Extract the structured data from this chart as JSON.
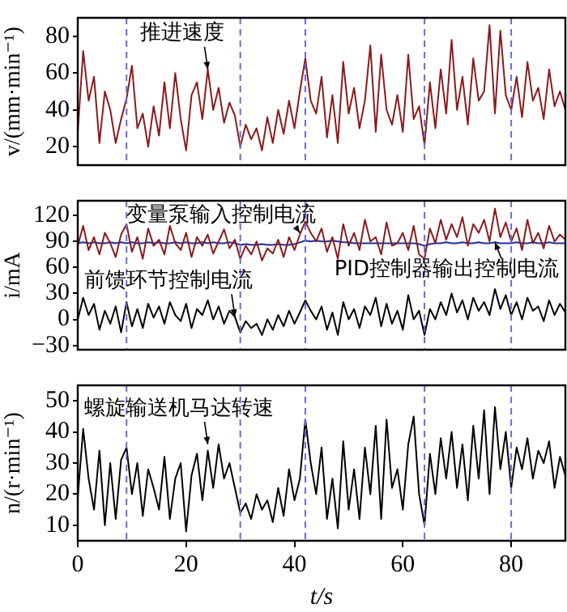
{
  "chart_data": [
    {
      "type": "line",
      "ylabel": "v/(mm·min⁻¹)",
      "tick_labels": "y",
      "x": [
        0,
        1,
        2,
        3,
        4,
        5,
        6,
        7,
        8,
        9,
        10,
        11,
        12,
        13,
        14,
        15,
        16,
        17,
        18,
        19,
        20,
        21,
        22,
        23,
        24,
        25,
        26,
        27,
        28,
        29,
        30,
        31,
        32,
        33,
        34,
        35,
        36,
        37,
        38,
        39,
        40,
        41,
        42,
        43,
        44,
        45,
        46,
        47,
        48,
        49,
        50,
        51,
        52,
        53,
        54,
        55,
        56,
        57,
        58,
        59,
        60,
        61,
        62,
        63,
        64,
        65,
        66,
        67,
        68,
        69,
        70,
        71,
        72,
        73,
        74,
        75,
        76,
        77,
        78,
        79,
        80,
        81,
        82,
        83,
        84,
        85,
        86,
        87,
        88,
        89,
        90
      ],
      "xlim": [
        0,
        90
      ],
      "xticks": [
        0,
        20,
        40,
        60,
        80
      ],
      "ylim": [
        10,
        90
      ],
      "yticks": [
        20,
        40,
        60,
        80
      ],
      "series": [
        {
          "color": "#8b1a1a",
          "values": [
            28,
            72,
            45,
            58,
            22,
            50,
            40,
            22,
            35,
            46,
            64,
            30,
            38,
            20,
            42,
            26,
            55,
            30,
            60,
            35,
            18,
            48,
            55,
            35,
            62,
            40,
            52,
            33,
            44,
            37,
            20,
            32,
            24,
            30,
            18,
            36,
            22,
            40,
            27,
            45,
            30,
            50,
            68,
            45,
            38,
            58,
            25,
            48,
            22,
            66,
            38,
            52,
            30,
            45,
            75,
            28,
            70,
            40,
            32,
            48,
            28,
            70,
            35,
            42,
            21,
            55,
            30,
            62,
            38,
            78,
            40,
            58,
            32,
            68,
            45,
            50,
            86,
            38,
            83,
            48,
            40,
            58,
            36,
            66,
            45,
            52,
            35,
            62,
            42,
            50,
            40
          ]
        }
      ],
      "ref_lines": [
        {
          "axis": "x",
          "value": 9,
          "color": "#6a6ad8",
          "line_style": "dashed"
        },
        {
          "axis": "x",
          "value": 30,
          "color": "#6a6ad8",
          "line_style": "dashed"
        },
        {
          "axis": "x",
          "value": 42,
          "color": "#6a6ad8",
          "line_style": "dashed"
        },
        {
          "axis": "x",
          "value": 64,
          "color": "#6a6ad8",
          "line_style": "dashed"
        },
        {
          "axis": "x",
          "value": 80,
          "color": "#6a6ad8",
          "line_style": "dashed"
        }
      ],
      "annotations": [
        {
          "text": "推进速度",
          "x": 24,
          "y": 62
        }
      ]
    },
    {
      "type": "line",
      "ylabel": "i/mA",
      "tick_labels": "y",
      "x": [
        0,
        1,
        2,
        3,
        4,
        5,
        6,
        7,
        8,
        9,
        10,
        11,
        12,
        13,
        14,
        15,
        16,
        17,
        18,
        19,
        20,
        21,
        22,
        23,
        24,
        25,
        26,
        27,
        28,
        29,
        30,
        31,
        32,
        33,
        34,
        35,
        36,
        37,
        38,
        39,
        40,
        41,
        42,
        43,
        44,
        45,
        46,
        47,
        48,
        49,
        50,
        51,
        52,
        53,
        54,
        55,
        56,
        57,
        58,
        59,
        60,
        61,
        62,
        63,
        64,
        65,
        66,
        67,
        68,
        69,
        70,
        71,
        72,
        73,
        74,
        75,
        76,
        77,
        78,
        79,
        80,
        81,
        82,
        83,
        84,
        85,
        86,
        87,
        88,
        89,
        90
      ],
      "xlim": [
        0,
        90
      ],
      "xticks": [
        0,
        20,
        40,
        60,
        80
      ],
      "ylim": [
        -35,
        137
      ],
      "yticks": [
        -30,
        0,
        30,
        60,
        90,
        120
      ],
      "series": [
        {
          "color": "#8b1a1a",
          "values": [
            85,
            108,
            80,
            95,
            75,
            100,
            88,
            72,
            98,
            110,
            78,
            95,
            70,
            105,
            85,
            92,
            75,
            108,
            88,
            80,
            100,
            72,
            95,
            85,
            98,
            76,
            90,
            104,
            82,
            92,
            70,
            85,
            75,
            90,
            68,
            82,
            76,
            92,
            72,
            95,
            80,
            98,
            113,
            100,
            90,
            105,
            78,
            95,
            70,
            110,
            85,
            100,
            80,
            115,
            90,
            95,
            75,
            112,
            85,
            88,
            100,
            80,
            108,
            75,
            70,
            105,
            88,
            115,
            92,
            110,
            95,
            118,
            85,
            110,
            100,
            115,
            90,
            128,
            95,
            112,
            90,
            105,
            80,
            115,
            88,
            100,
            82,
            108,
            90,
            98,
            92
          ]
        },
        {
          "color": "#1f2f9a",
          "values": [
            88,
            89,
            88,
            89,
            88,
            88,
            89,
            88,
            89,
            88,
            89,
            88,
            88,
            89,
            88,
            89,
            88,
            88,
            89,
            88,
            89,
            88,
            88,
            89,
            88,
            89,
            88,
            88,
            89,
            88,
            86,
            87,
            86,
            86,
            87,
            86,
            86,
            87,
            86,
            86,
            87,
            89,
            91,
            90,
            91,
            90,
            90,
            91,
            90,
            89,
            89,
            88,
            88,
            88,
            88,
            88,
            88,
            88,
            88,
            88,
            88,
            88,
            88,
            87,
            85,
            87,
            88,
            88,
            89,
            88,
            88,
            89,
            88,
            88,
            89,
            88,
            88,
            89,
            88,
            88,
            88,
            89,
            88,
            88,
            89,
            88,
            88,
            89,
            88,
            88,
            88
          ]
        },
        {
          "color": "#000000",
          "values": [
            0,
            25,
            5,
            18,
            -12,
            10,
            -5,
            15,
            -15,
            20,
            -8,
            12,
            -10,
            18,
            2,
            15,
            -5,
            20,
            5,
            -2,
            18,
            -10,
            12,
            5,
            22,
            0,
            15,
            -5,
            10,
            3,
            -15,
            -2,
            -10,
            -5,
            -18,
            0,
            -12,
            5,
            -8,
            10,
            -5,
            8,
            22,
            10,
            0,
            15,
            -12,
            8,
            -18,
            20,
            0,
            12,
            -10,
            15,
            5,
            25,
            -8,
            18,
            -5,
            10,
            -12,
            28,
            0,
            10,
            -18,
            12,
            0,
            20,
            5,
            30,
            8,
            22,
            0,
            25,
            10,
            20,
            5,
            35,
            12,
            28,
            5,
            20,
            0,
            25,
            10,
            15,
            -2,
            22,
            5,
            18,
            8
          ]
        }
      ],
      "ref_lines": [
        {
          "axis": "x",
          "value": 9,
          "color": "#6a6ad8",
          "line_style": "dashed"
        },
        {
          "axis": "x",
          "value": 30,
          "color": "#6a6ad8",
          "line_style": "dashed"
        },
        {
          "axis": "x",
          "value": 42,
          "color": "#6a6ad8",
          "line_style": "dashed"
        },
        {
          "axis": "x",
          "value": 64,
          "color": "#6a6ad8",
          "line_style": "dashed"
        },
        {
          "axis": "x",
          "value": 80,
          "color": "#6a6ad8",
          "line_style": "dashed"
        }
      ],
      "annotations": [
        {
          "text": "变量泵输入控制电流",
          "x": 41,
          "y": 100
        },
        {
          "text": "PID控制器输出控制电流",
          "x": 77,
          "y": 89
        },
        {
          "text": "前馈环节控制电流",
          "x": 29,
          "y": 3
        }
      ]
    },
    {
      "type": "line",
      "ylabel": "n/(r·min⁻¹)",
      "xlabel": "t/s",
      "x": [
        0,
        1,
        2,
        3,
        4,
        5,
        6,
        7,
        8,
        9,
        10,
        11,
        12,
        13,
        14,
        15,
        16,
        17,
        18,
        19,
        20,
        21,
        22,
        23,
        24,
        25,
        26,
        27,
        28,
        29,
        30,
        31,
        32,
        33,
        34,
        35,
        36,
        37,
        38,
        39,
        40,
        41,
        42,
        43,
        44,
        45,
        46,
        47,
        48,
        49,
        50,
        51,
        52,
        53,
        54,
        55,
        56,
        57,
        58,
        59,
        60,
        61,
        62,
        63,
        64,
        65,
        66,
        67,
        68,
        69,
        70,
        71,
        72,
        73,
        74,
        75,
        76,
        77,
        78,
        79,
        80,
        81,
        82,
        83,
        84,
        85,
        86,
        87,
        88,
        89,
        90
      ],
      "xlim": [
        0,
        90
      ],
      "xticks": [
        0,
        20,
        40,
        60,
        80
      ],
      "ylim": [
        5,
        55
      ],
      "yticks": [
        10,
        20,
        30,
        40,
        50
      ],
      "series": [
        {
          "color": "#000000",
          "values": [
            19,
            41,
            25,
            15,
            34,
            10,
            30,
            12,
            31,
            35,
            20,
            30,
            13,
            28,
            22,
            15,
            32,
            12,
            25,
            30,
            8,
            26,
            33,
            18,
            34,
            22,
            36,
            25,
            30,
            22,
            14,
            17,
            12,
            20,
            15,
            18,
            11,
            22,
            13,
            28,
            18,
            25,
            44,
            30,
            20,
            35,
            12,
            25,
            9,
            37,
            15,
            28,
            12,
            35,
            20,
            42,
            12,
            44,
            22,
            28,
            15,
            36,
            45,
            20,
            10,
            33,
            20,
            38,
            25,
            40,
            22,
            36,
            18,
            42,
            25,
            47,
            20,
            48,
            28,
            40,
            22,
            35,
            28,
            38,
            25,
            34,
            30,
            37,
            22,
            32,
            26
          ]
        }
      ],
      "ref_lines": [
        {
          "axis": "x",
          "value": 9,
          "color": "#6a6ad8",
          "line_style": "dashed"
        },
        {
          "axis": "x",
          "value": 30,
          "color": "#6a6ad8",
          "line_style": "dashed"
        },
        {
          "axis": "x",
          "value": 42,
          "color": "#6a6ad8",
          "line_style": "dashed"
        },
        {
          "axis": "x",
          "value": 64,
          "color": "#6a6ad8",
          "line_style": "dashed"
        },
        {
          "axis": "x",
          "value": 80,
          "color": "#6a6ad8",
          "line_style": "dashed"
        }
      ],
      "annotations": [
        {
          "text": "螺旋输送机马达转速",
          "x": 24,
          "y": 36
        }
      ]
    }
  ]
}
